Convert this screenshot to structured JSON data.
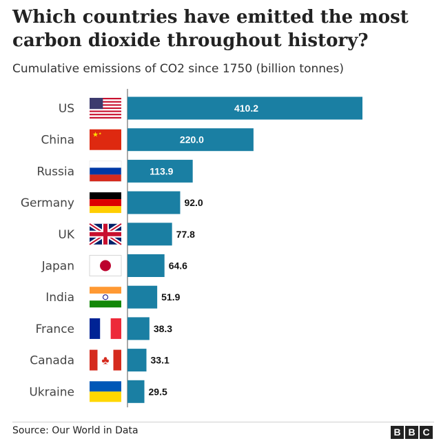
{
  "title": "Which countries have emitted the most carbon dioxide throughout history?",
  "subtitle": "Cumulative emissions of CO2 since 1750 (billion tonnes)",
  "source": "Source: Our World in Data",
  "logo": [
    "B",
    "B",
    "C"
  ],
  "colors": {
    "bar": "#1a7fa3",
    "label_inside": "#ffffff",
    "label_outside": "#111111"
  },
  "chart_data": {
    "type": "bar",
    "orientation": "horizontal",
    "categories": [
      "US",
      "China",
      "Russia",
      "Germany",
      "UK",
      "Japan",
      "India",
      "France",
      "Canada",
      "Ukraine"
    ],
    "flag_icons": [
      "us-flag-icon",
      "china-flag-icon",
      "russia-flag-icon",
      "germany-flag-icon",
      "uk-flag-icon",
      "japan-flag-icon",
      "india-flag-icon",
      "france-flag-icon",
      "canada-flag-icon",
      "ukraine-flag-icon"
    ],
    "values": [
      410.2,
      220.0,
      113.9,
      92.0,
      77.8,
      64.6,
      51.9,
      38.3,
      33.1,
      29.5
    ],
    "value_labels": [
      "410.2",
      "220.0",
      "113.9",
      "92.0",
      "77.8",
      "64.6",
      "51.9",
      "38.3",
      "33.1",
      "29.5"
    ],
    "xlim": [
      0,
      410.2
    ],
    "grid": false,
    "legend": "none"
  }
}
